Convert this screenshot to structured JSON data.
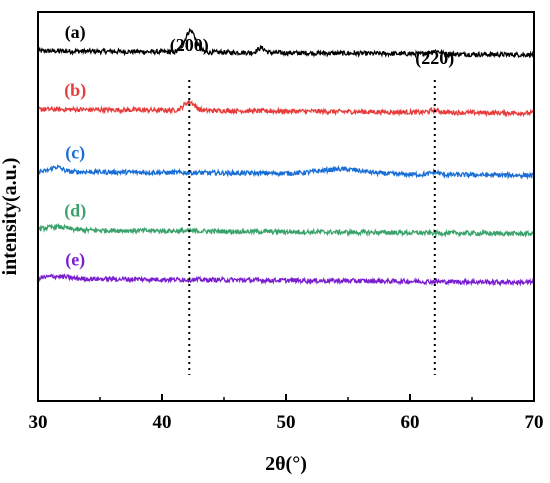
{
  "chart_data": {
    "type": "line",
    "xlabel": "2θ(°)",
    "ylabel": "intensity(a.u.)",
    "xlim": [
      30,
      70
    ],
    "x_ticks": [
      "30",
      "40",
      "50",
      "60",
      "70"
    ],
    "y_ticks": [],
    "grid": false,
    "legend": "none (labels beside traces)",
    "series": [
      {
        "name": "(a)",
        "color": "#000000",
        "baseline": 0.89,
        "peaks": [
          {
            "x": 42.3,
            "height": 0.055,
            "width": 0.6
          },
          {
            "x": 48.0,
            "height": 0.012,
            "width": 0.4
          },
          {
            "x": 62.0,
            "height": 0.008,
            "width": 0.6
          }
        ]
      },
      {
        "name": "(b)",
        "color": "#e83c3c",
        "baseline": 0.74,
        "peaks": [
          {
            "x": 42.2,
            "height": 0.022,
            "width": 0.6
          },
          {
            "x": 62.0,
            "height": 0.005,
            "width": 0.6
          }
        ]
      },
      {
        "name": "(c)",
        "color": "#1a6fd6",
        "baseline": 0.58,
        "peaks": [
          {
            "x": 31.5,
            "height": 0.012,
            "width": 0.6
          },
          {
            "x": 54.5,
            "height": 0.012,
            "width": 2.5
          },
          {
            "x": 62.0,
            "height": 0.006,
            "width": 0.5
          }
        ]
      },
      {
        "name": "(d)",
        "color": "#3aa36b",
        "baseline": 0.43,
        "peaks": [
          {
            "x": 31.5,
            "height": 0.008,
            "width": 1.2
          }
        ]
      },
      {
        "name": "(e)",
        "color": "#7a1fd0",
        "baseline": 0.305,
        "peaks": [
          {
            "x": 31.5,
            "height": 0.006,
            "width": 1.2
          }
        ]
      }
    ],
    "reference_lines": [
      {
        "x": 42.2,
        "label": "(200)"
      },
      {
        "x": 62.0,
        "label": "(220)"
      }
    ]
  }
}
